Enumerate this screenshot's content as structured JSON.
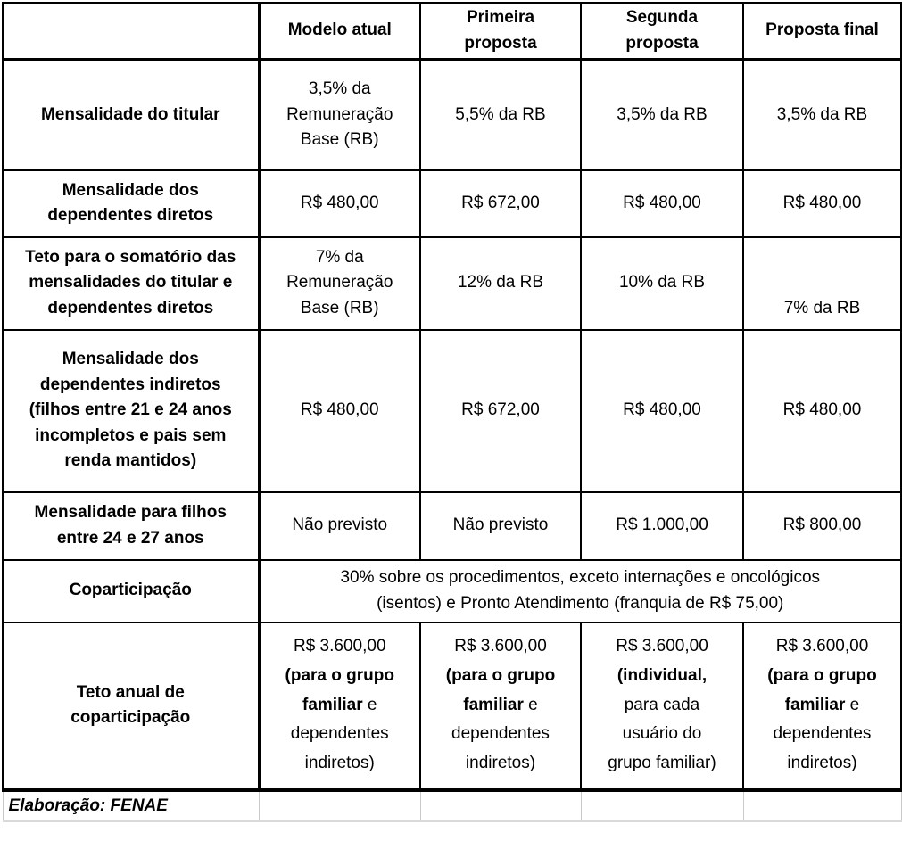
{
  "colors": {
    "grid": "#000000",
    "text": "#000000",
    "footer_grid": "#c9c9c9",
    "bottom_strip": "#d9d9d9",
    "background": "#ffffff"
  },
  "table": {
    "header": [
      "",
      "Modelo atual",
      "Primeira\nproposta",
      "Segunda\nproposta",
      "Proposta final"
    ],
    "rows": [
      {
        "label": "Mensalidade do titular",
        "cells": [
          "3,5% da\nRemuneração\nBase (RB)",
          "5,5% da RB",
          "3,5% da RB",
          "3,5% da RB"
        ]
      },
      {
        "label": "Mensalidade dos\ndependentes diretos",
        "cells": [
          "R$ 480,00",
          "R$ 672,00",
          "R$ 480,00",
          "R$ 480,00"
        ]
      },
      {
        "label": "Teto para o somatório das\nmensalidades do titular e\ndependentes diretos",
        "cells": [
          "7% da\nRemuneração\nBase (RB)",
          "12% da RB",
          "10% da RB",
          "7% da RB"
        ]
      },
      {
        "label": "Mensalidade dos\ndependentes indiretos\n(filhos entre 21 e 24 anos\nincompletos e pais sem\nrenda mantidos)",
        "cells": [
          "R$ 480,00",
          "R$ 672,00",
          "R$ 480,00",
          "R$ 480,00"
        ]
      },
      {
        "label": "Mensalidade para filhos\nentre 24 e 27 anos",
        "cells": [
          "Não previsto",
          "Não previsto",
          "R$ 1.000,00",
          "R$ 800,00"
        ]
      },
      {
        "label": "Coparticipação",
        "span": "30%  sobre os procedimentos, exceto internações e oncológicos\n(isentos) e Pronto Atendimento (franquia de R$ 75,00)"
      },
      {
        "label": "Teto anual de\ncoparticipação",
        "rich": [
          [
            {
              "t": "R$ 3.600,00\n",
              "b": false
            },
            {
              "t": "(para o grupo\nfamiliar",
              "b": true
            },
            {
              "t": " e\ndependentes\nindiretos)",
              "b": false
            }
          ],
          [
            {
              "t": "R$ 3.600,00\n",
              "b": false
            },
            {
              "t": "(para o grupo\nfamiliar",
              "b": true
            },
            {
              "t": " e\ndependentes\nindiretos)",
              "b": false
            }
          ],
          [
            {
              "t": "R$ 3.600,00\n",
              "b": false
            },
            {
              "t": "(individual,",
              "b": true
            },
            {
              "t": "\npara cada\nusuário do\ngrupo familiar)",
              "b": false
            }
          ],
          [
            {
              "t": "R$ 3.600,00\n",
              "b": false
            },
            {
              "t": "(para o grupo\nfamiliar",
              "b": true
            },
            {
              "t": " e\ndependentes\nindiretos)",
              "b": false
            }
          ]
        ]
      }
    ],
    "caption": "Elaboração: FENAE"
  }
}
